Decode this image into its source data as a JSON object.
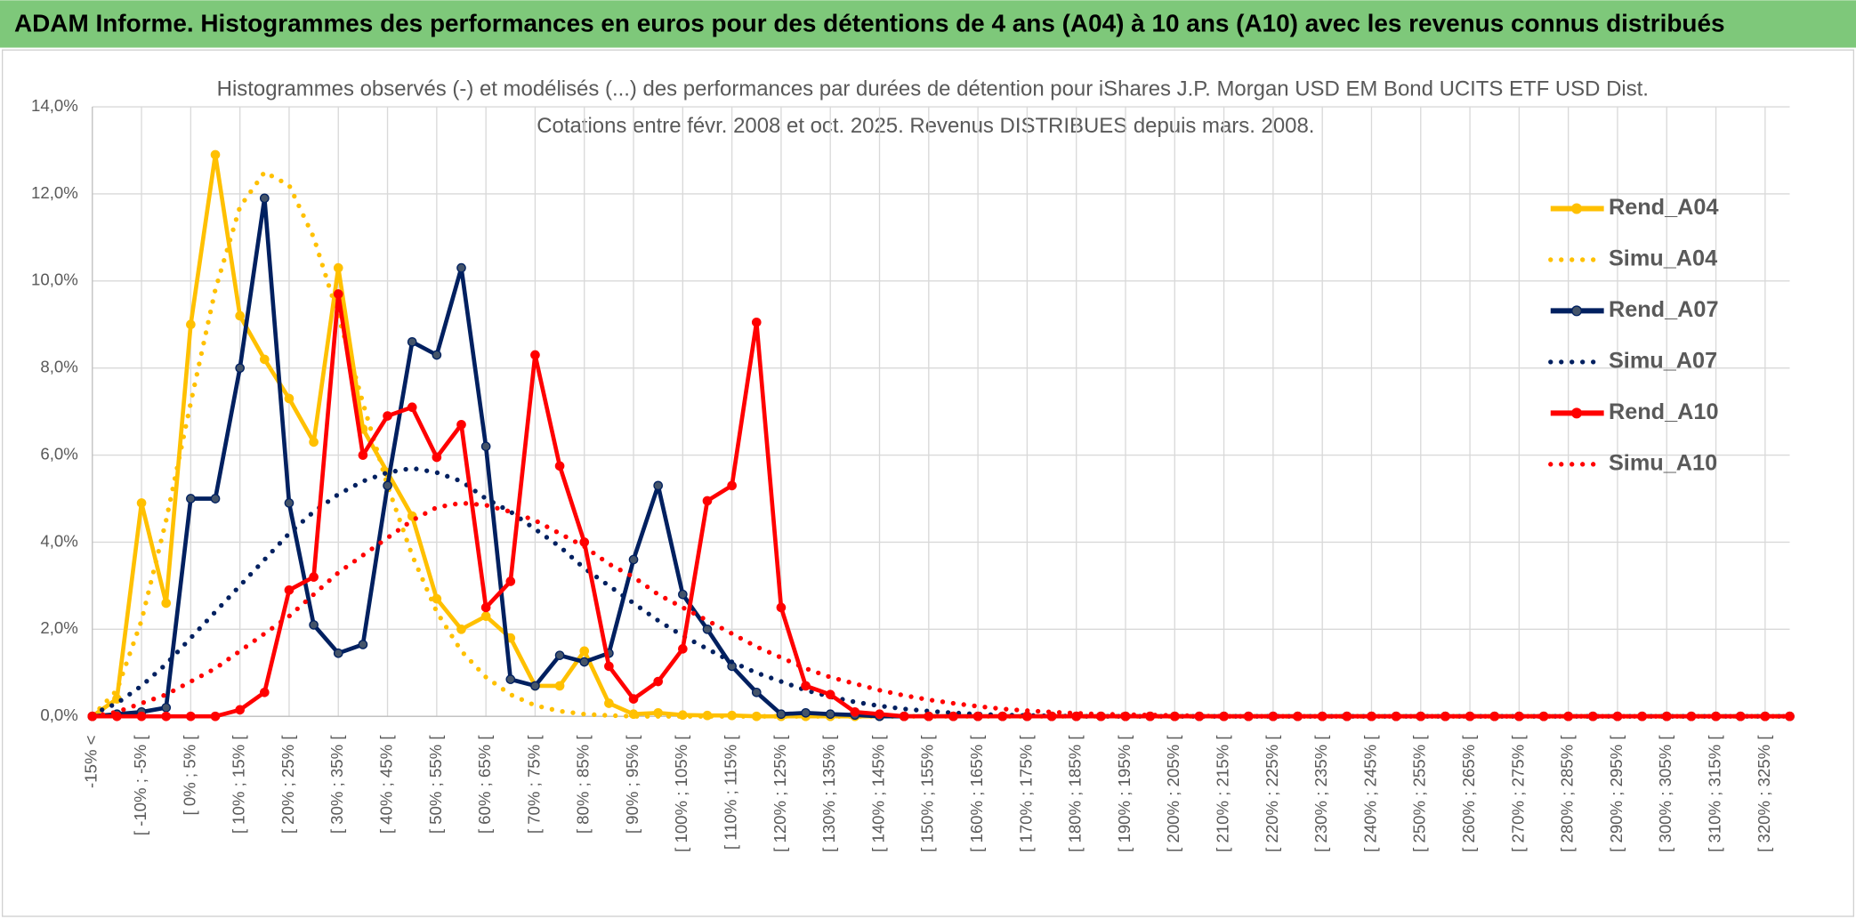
{
  "header": "ADAM Informe. Histogrammes des performances en euros pour des détentions de 4 ans (A04) à 10 ans (A10) avec les revenus connus distribués",
  "chart_data": {
    "type": "line",
    "title": "Histogrammes observés (-) et modélisés (...) des performances par durées de détention pour iShares J.P. Morgan USD EM Bond UCITS ETF USD Dist.",
    "subtitle": "Cotations entre févr. 2008 et oct. 2025. Revenus DISTRIBUES depuis mars. 2008.",
    "categories": [
      "-15% <",
      null,
      "[ -10% ; -5% [",
      null,
      "[ 0% ; 5% [",
      null,
      "[ 10% ; 15% [",
      null,
      "[ 20% ; 25% [",
      null,
      "[ 30% ; 35% [",
      null,
      "[ 40% ; 45% [",
      null,
      "[ 50% ; 55% [",
      null,
      "[ 60% ; 65% [",
      null,
      "[ 70% ; 75% [",
      null,
      "[ 80% ; 85% [",
      null,
      "[ 90% ; 95% [",
      null,
      "[ 100% ; 105% [",
      null,
      "[ 110% ; 115% [",
      null,
      "[ 120% ; 125% [",
      null,
      "[ 130% ; 135% [",
      null,
      "[ 140% ; 145% [",
      null,
      "[ 150% ; 155% [",
      null,
      "[ 160% ; 165% [",
      null,
      "[ 170% ; 175% [",
      null,
      "[ 180% ; 185% [",
      null,
      "[ 190% ; 195% [",
      null,
      "[ 200% ; 205% [",
      null,
      "[ 210% ; 215% [",
      null,
      "[ 220% ; 225% [",
      null,
      "[ 230% ; 235% [",
      null,
      "[ 240% ; 245% [",
      null,
      "[ 250% ; 255% [",
      null,
      "[ 260% ; 265% [",
      null,
      "[ 270% ; 275% [",
      null,
      "[ 280% ; 285% [",
      null,
      "[ 290% ; 295% [",
      null,
      "[ 300% ; 305% [",
      null,
      "[ 310% ; 315% [",
      null,
      "[ 320% ; 325% [",
      null
    ],
    "series": [
      {
        "name": "Rend_A04",
        "color": "#ffc000",
        "style": "solid",
        "markers": true,
        "values": [
          0,
          0.4,
          4.9,
          2.6,
          9.0,
          12.9,
          9.2,
          8.2,
          7.3,
          6.3,
          10.3,
          6.6,
          5.6,
          4.6,
          2.7,
          2.0,
          2.3,
          1.8,
          0.7,
          0.7,
          1.5,
          0.3,
          0.05,
          0.08,
          0.03,
          0.02,
          0.02,
          0,
          0,
          0,
          0,
          0,
          0,
          0,
          0,
          0,
          0,
          0,
          0,
          0,
          0,
          0,
          0,
          0,
          0,
          0,
          0,
          0,
          0,
          0,
          0,
          0,
          0,
          0,
          0,
          0,
          0,
          0,
          0,
          0,
          0,
          0,
          0,
          0,
          0,
          0,
          0,
          0,
          0,
          0
        ]
      },
      {
        "name": "Simu_A04",
        "color": "#ffc000",
        "style": "dotted",
        "markers": false,
        "values": [
          0,
          0.6,
          2.2,
          4.5,
          7.2,
          9.8,
          11.7,
          12.5,
          12.2,
          11.0,
          9.2,
          7.2,
          5.3,
          3.7,
          2.4,
          1.5,
          0.9,
          0.5,
          0.25,
          0.12,
          0.05,
          0.02,
          0,
          0,
          0,
          0,
          0,
          0,
          0,
          0,
          0,
          0,
          0,
          0,
          0,
          0,
          0,
          0,
          0,
          0,
          0,
          0,
          0,
          0,
          0,
          0,
          0,
          0,
          0,
          0,
          0,
          0,
          0,
          0,
          0,
          0,
          0,
          0,
          0,
          0,
          0,
          0,
          0,
          0,
          0,
          0,
          0,
          0,
          0,
          0
        ]
      },
      {
        "name": "Rend_A07",
        "color": "#002060",
        "style": "solid",
        "markers": true,
        "values": [
          0,
          0.05,
          0.1,
          0.2,
          5.0,
          5.0,
          8.0,
          11.9,
          4.9,
          2.1,
          1.45,
          1.65,
          5.3,
          8.6,
          8.3,
          10.3,
          6.2,
          0.85,
          0.7,
          1.4,
          1.25,
          1.45,
          3.6,
          5.3,
          2.8,
          2.0,
          1.15,
          0.55,
          0.05,
          0.08,
          0.05,
          0.03,
          0,
          0,
          0,
          0,
          0,
          0,
          0,
          0,
          0,
          0,
          0,
          0,
          0,
          0,
          0,
          0,
          0,
          0,
          0,
          0,
          0,
          0,
          0,
          0,
          0,
          0,
          0,
          0,
          0,
          0,
          0,
          0,
          0,
          0,
          0,
          0,
          0,
          0
        ]
      },
      {
        "name": "Simu_A07",
        "color": "#002060",
        "style": "dotted",
        "markers": false,
        "values": [
          0.05,
          0.3,
          0.7,
          1.2,
          1.8,
          2.4,
          3.0,
          3.6,
          4.2,
          4.7,
          5.1,
          5.4,
          5.6,
          5.7,
          5.6,
          5.4,
          5.0,
          4.7,
          4.3,
          3.9,
          3.4,
          3.0,
          2.6,
          2.2,
          1.85,
          1.55,
          1.25,
          1.0,
          0.8,
          0.6,
          0.45,
          0.33,
          0.24,
          0.17,
          0.12,
          0.08,
          0.05,
          0.03,
          0.02,
          0.01,
          0,
          0,
          0,
          0,
          0,
          0,
          0,
          0,
          0,
          0,
          0,
          0,
          0,
          0,
          0,
          0,
          0,
          0,
          0,
          0,
          0,
          0,
          0,
          0,
          0,
          0,
          0,
          0,
          0,
          0
        ]
      },
      {
        "name": "Rend_A10",
        "color": "#ff0000",
        "style": "solid",
        "markers": true,
        "values": [
          0,
          0,
          0,
          0,
          0,
          0,
          0.15,
          0.55,
          2.9,
          3.2,
          9.7,
          6.0,
          6.9,
          7.1,
          5.95,
          6.7,
          2.5,
          3.1,
          8.3,
          5.75,
          4.0,
          1.15,
          0.4,
          0.8,
          1.55,
          4.95,
          5.3,
          9.05,
          2.5,
          0.7,
          0.5,
          0.1,
          0.05,
          0,
          0,
          0,
          0,
          0,
          0,
          0,
          0,
          0,
          0,
          0,
          0,
          0,
          0,
          0,
          0,
          0,
          0,
          0,
          0,
          0,
          0,
          0,
          0,
          0,
          0,
          0,
          0,
          0,
          0,
          0,
          0,
          0,
          0,
          0,
          0,
          0
        ]
      },
      {
        "name": "Simu_A10",
        "color": "#ff0000",
        "style": "dotted",
        "markers": false,
        "values": [
          0,
          0.1,
          0.3,
          0.5,
          0.8,
          1.1,
          1.5,
          1.9,
          2.3,
          2.8,
          3.3,
          3.7,
          4.1,
          4.5,
          4.8,
          4.9,
          4.85,
          4.7,
          4.5,
          4.2,
          3.9,
          3.5,
          3.2,
          2.8,
          2.5,
          2.2,
          1.9,
          1.6,
          1.35,
          1.1,
          0.9,
          0.75,
          0.6,
          0.48,
          0.38,
          0.3,
          0.23,
          0.17,
          0.13,
          0.1,
          0.07,
          0.05,
          0.04,
          0.03,
          0.02,
          0.01,
          0,
          0,
          0,
          0,
          0,
          0,
          0,
          0,
          0,
          0,
          0,
          0,
          0,
          0,
          0,
          0,
          0,
          0,
          0,
          0,
          0,
          0,
          0,
          0
        ]
      }
    ],
    "ylim": [
      0,
      14
    ],
    "yticks": [
      {
        "value": 0,
        "label": "0,0%"
      },
      {
        "value": 2,
        "label": "2,0%"
      },
      {
        "value": 4,
        "label": "4,0%"
      },
      {
        "value": 6,
        "label": "6,0%"
      },
      {
        "value": 8,
        "label": "8,0%"
      },
      {
        "value": 10,
        "label": "10,0%"
      },
      {
        "value": 12,
        "label": "12,0%"
      },
      {
        "value": 14,
        "label": "14,0%"
      }
    ],
    "grid": true,
    "legend": "right"
  }
}
